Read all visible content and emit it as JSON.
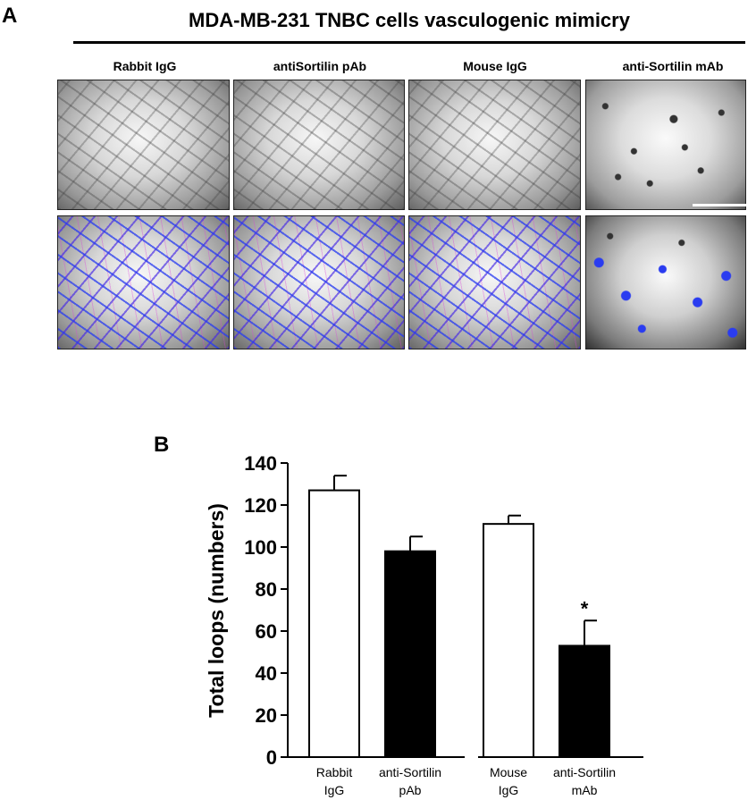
{
  "panel_a": {
    "letter": "A",
    "title": "MDA-MB-231 TNBC cells vasculogenic mimicry",
    "columns": [
      "Rabbit IgG",
      "antiSortilin pAb",
      "Mouse IgG",
      "anti-Sortilin mAb"
    ]
  },
  "panel_b": {
    "letter": "B"
  },
  "chart_data": {
    "type": "bar",
    "title": "",
    "xlabel": "",
    "ylabel": "Total loops (numbers)",
    "ylim": [
      0,
      140
    ],
    "yticks": [
      0,
      20,
      40,
      60,
      80,
      100,
      120,
      140
    ],
    "grid": false,
    "groups": [
      {
        "bars": [
          {
            "label_lines": [
              "Rabbit",
              "IgG"
            ],
            "value": 127,
            "error": 7,
            "fill": "#ffffff",
            "annotation": ""
          },
          {
            "label_lines": [
              "anti-Sortilin",
              "pAb"
            ],
            "value": 98,
            "error": 7,
            "fill": "#000000",
            "annotation": ""
          }
        ]
      },
      {
        "bars": [
          {
            "label_lines": [
              "Mouse",
              "IgG"
            ],
            "value": 111,
            "error": 4,
            "fill": "#ffffff",
            "annotation": ""
          },
          {
            "label_lines": [
              "anti-Sortilin",
              "mAb"
            ],
            "value": 53,
            "error": 12,
            "fill": "#000000",
            "annotation": "*"
          }
        ]
      }
    ]
  }
}
